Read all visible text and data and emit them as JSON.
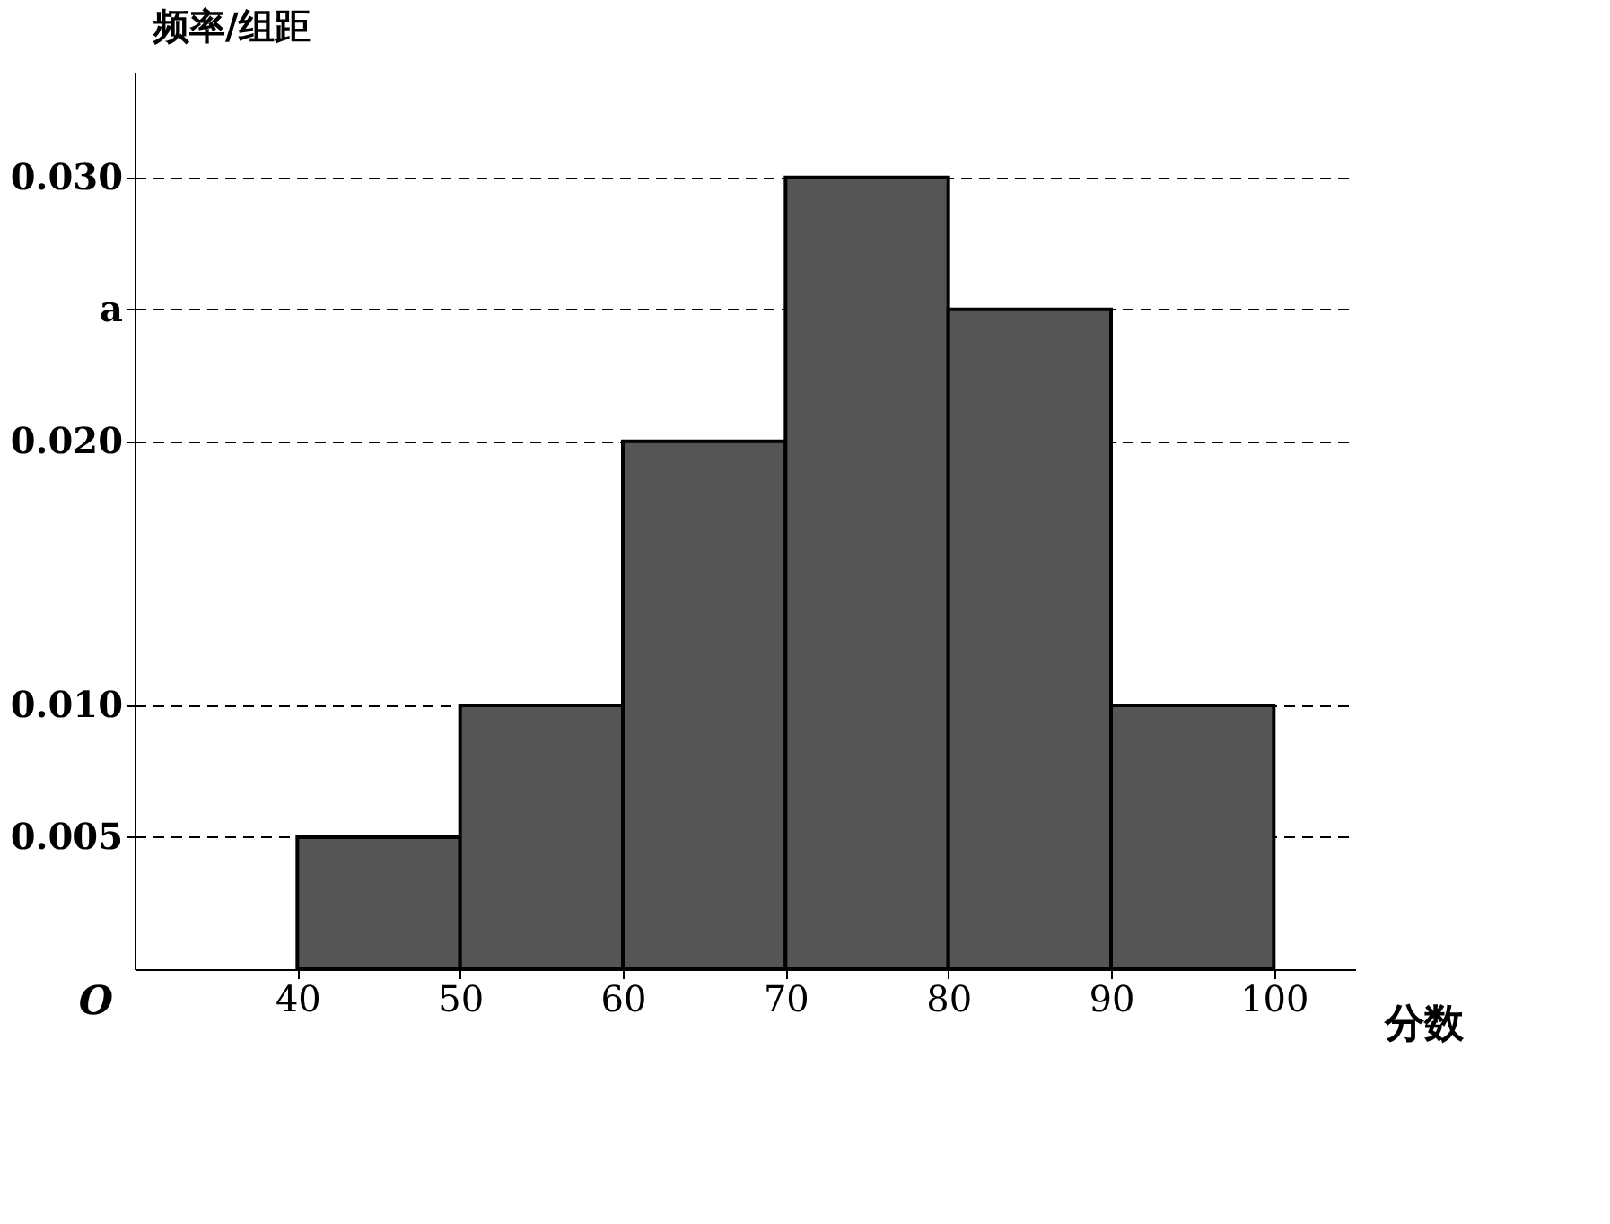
{
  "chart_data": {
    "type": "histogram",
    "xlabel": "分数",
    "ylabel": "频率/组距",
    "bins": [
      40,
      50,
      60,
      70,
      80,
      90,
      100
    ],
    "values": [
      0.005,
      0.01,
      0.02,
      0.03,
      0.025,
      0.01
    ],
    "color": "#555555",
    "xlim": [
      30,
      105
    ],
    "xticks": [
      40,
      50,
      60,
      70,
      80,
      90,
      100
    ],
    "ylim": [
      0,
      0.034
    ],
    "yticks": [
      {
        "value": 0.005,
        "label": "0.005"
      },
      {
        "value": 0.01,
        "label": "0.010"
      },
      {
        "value": 0.02,
        "label": "0.020"
      },
      {
        "value": 0.025,
        "label": "a"
      },
      {
        "value": 0.03,
        "label": "0.030"
      }
    ],
    "grid": "y",
    "line_style": "dashed",
    "annotations": [
      "O"
    ]
  }
}
